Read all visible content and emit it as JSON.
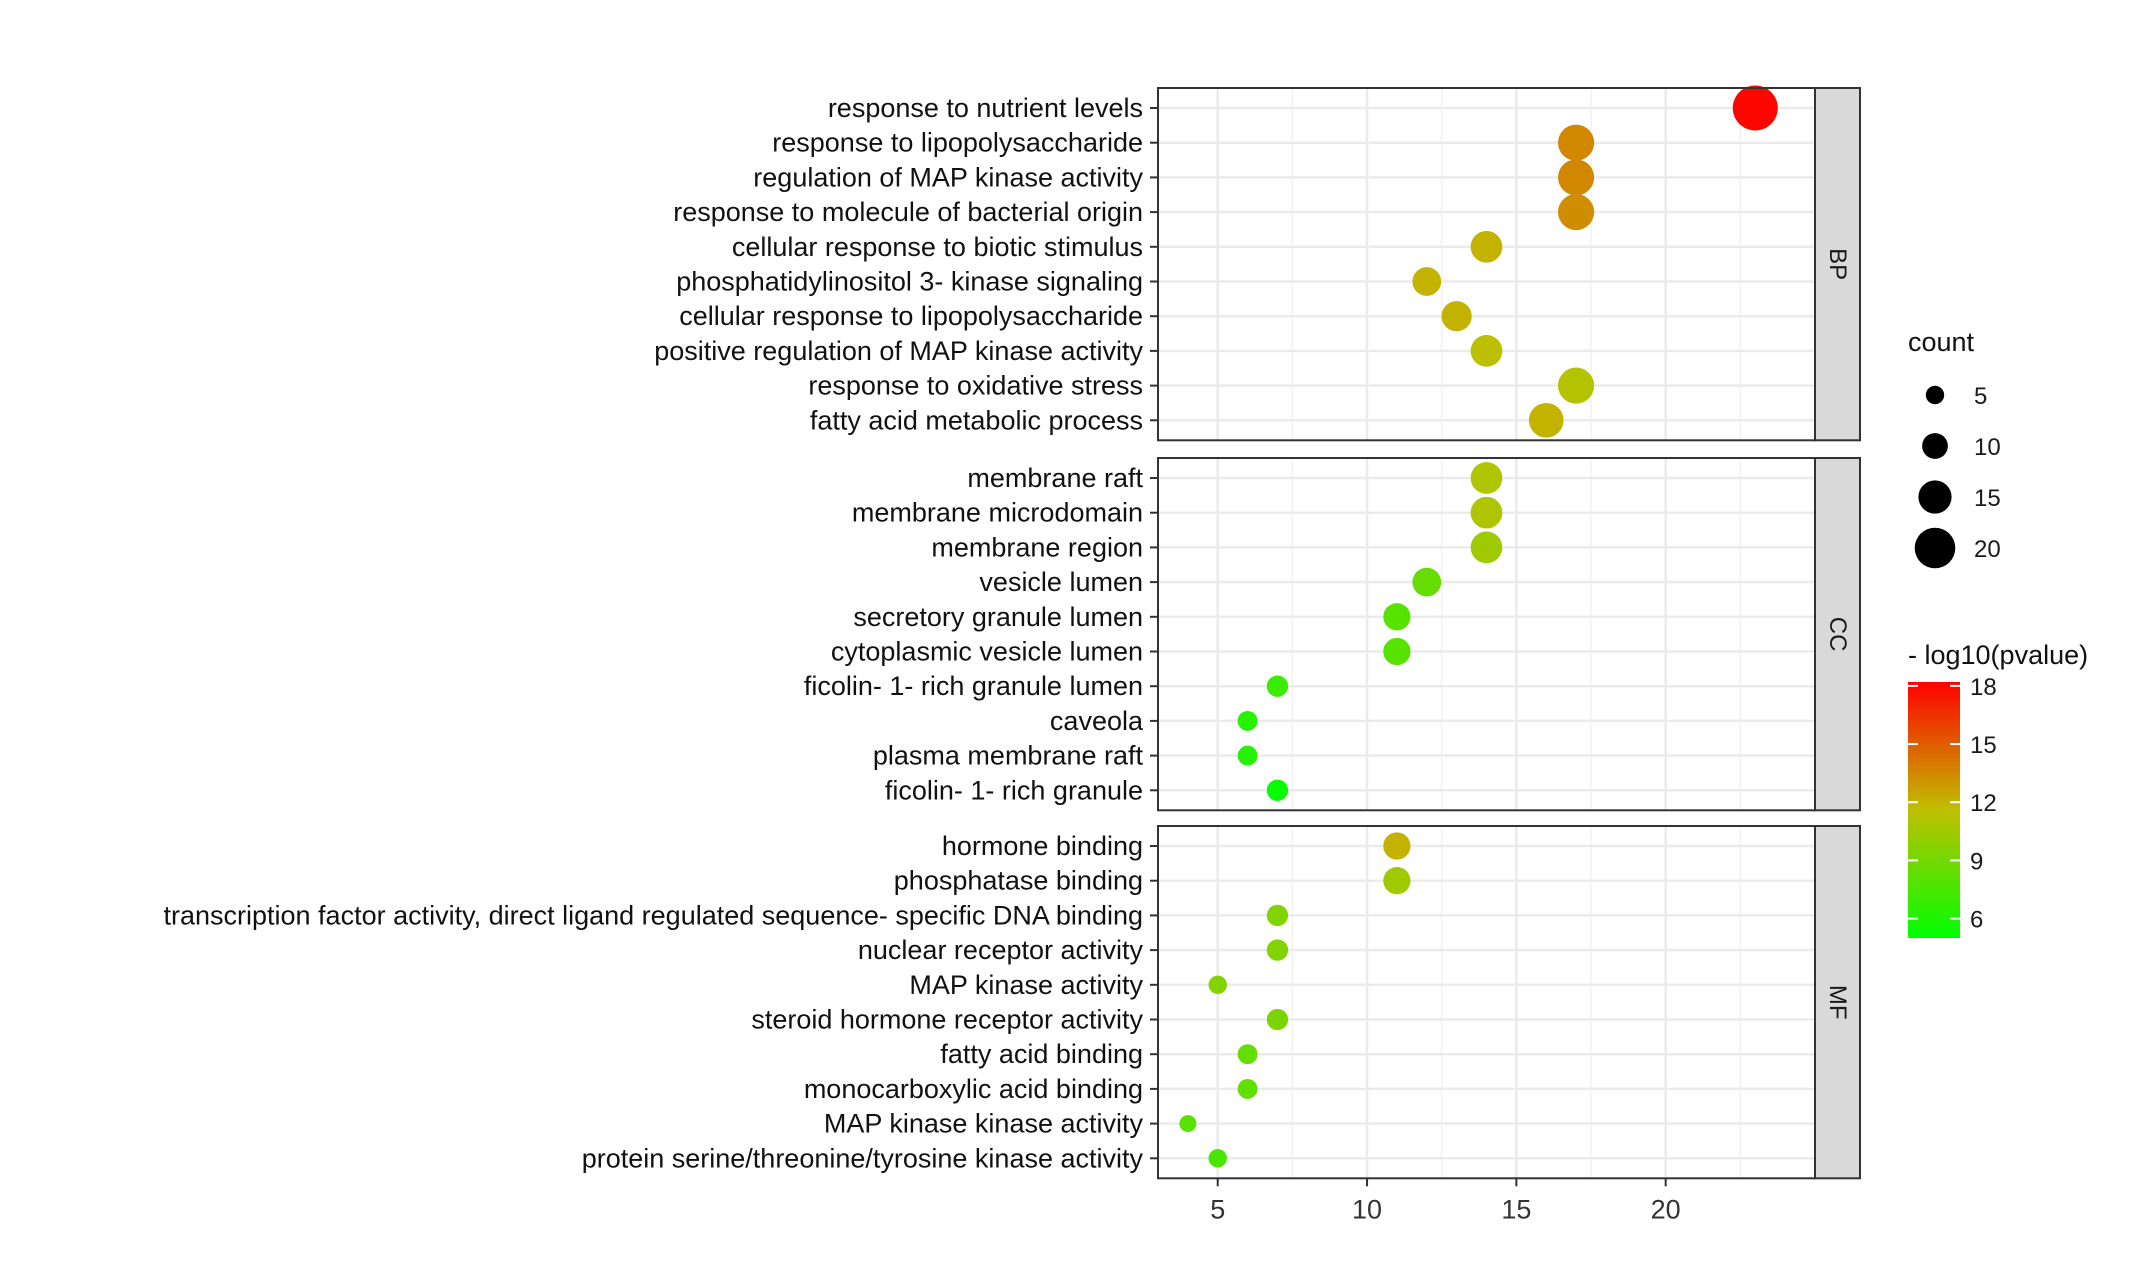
{
  "chart_data": {
    "type": "scatter",
    "title": "",
    "xlabel": "",
    "ylabel": "",
    "x_ticks": [
      5,
      10,
      15,
      20
    ],
    "x_range": [
      3,
      25
    ],
    "grid": true,
    "panels": [
      {
        "facet": "BP",
        "terms": [
          {
            "label": "response to nutrient levels",
            "count": 23,
            "neg_log10_p": 18
          },
          {
            "label": "response to lipopolysaccharide",
            "count": 17,
            "neg_log10_p": 13.5
          },
          {
            "label": "regulation of MAP kinase activity",
            "count": 17,
            "neg_log10_p": 13.5
          },
          {
            "label": "response to molecule of bacterial origin",
            "count": 17,
            "neg_log10_p": 13.3
          },
          {
            "label": "cellular response to biotic stimulus",
            "count": 14,
            "neg_log10_p": 12
          },
          {
            "label": "phosphatidylinositol 3- kinase signaling",
            "count": 12,
            "neg_log10_p": 12
          },
          {
            "label": "cellular response to lipopolysaccharide",
            "count": 13,
            "neg_log10_p": 12
          },
          {
            "label": "positive regulation of MAP kinase activity",
            "count": 14,
            "neg_log10_p": 11.5
          },
          {
            "label": "response to oxidative stress",
            "count": 17,
            "neg_log10_p": 11.2
          },
          {
            "label": "fatty acid metabolic process",
            "count": 16,
            "neg_log10_p": 12
          }
        ]
      },
      {
        "facet": "CC",
        "terms": [
          {
            "label": "membrane raft",
            "count": 14,
            "neg_log10_p": 11
          },
          {
            "label": "membrane microdomain",
            "count": 14,
            "neg_log10_p": 11
          },
          {
            "label": "membrane region",
            "count": 14,
            "neg_log10_p": 10.5
          },
          {
            "label": "vesicle lumen",
            "count": 12,
            "neg_log10_p": 8.5
          },
          {
            "label": "secretory granule lumen",
            "count": 11,
            "neg_log10_p": 8
          },
          {
            "label": "cytoplasmic vesicle lumen",
            "count": 11,
            "neg_log10_p": 8
          },
          {
            "label": "ficolin- 1- rich granule lumen",
            "count": 7,
            "neg_log10_p": 7
          },
          {
            "label": "caveola",
            "count": 6,
            "neg_log10_p": 6.3
          },
          {
            "label": "plasma membrane raft",
            "count": 6,
            "neg_log10_p": 6.3
          },
          {
            "label": "ficolin- 1- rich granule",
            "count": 7,
            "neg_log10_p": 5.3
          }
        ]
      },
      {
        "facet": "MF",
        "terms": [
          {
            "label": "hormone binding",
            "count": 11,
            "neg_log10_p": 12
          },
          {
            "label": "phosphatase binding",
            "count": 11,
            "neg_log10_p": 10.5
          },
          {
            "label": "transcription factor activity, direct ligand regulated sequence- specific DNA binding",
            "count": 7,
            "neg_log10_p": 9.5
          },
          {
            "label": "nuclear receptor activity",
            "count": 7,
            "neg_log10_p": 9.5
          },
          {
            "label": "MAP kinase activity",
            "count": 5,
            "neg_log10_p": 9.5
          },
          {
            "label": "steroid hormone receptor activity",
            "count": 7,
            "neg_log10_p": 9.3
          },
          {
            "label": "fatty acid binding",
            "count": 6,
            "neg_log10_p": 8.5
          },
          {
            "label": "monocarboxylic acid binding",
            "count": 6,
            "neg_log10_p": 8.3
          },
          {
            "label": "MAP kinase kinase activity",
            "count": 4,
            "neg_log10_p": 8
          },
          {
            "label": "protein serine/threonine/tyrosine kinase activity",
            "count": 5,
            "neg_log10_p": 7.5
          }
        ]
      }
    ],
    "size_legend": {
      "title": "count",
      "values": [
        5,
        10,
        15,
        20
      ]
    },
    "color_legend": {
      "title": "- log10(pvalue)",
      "ticks": [
        6,
        9,
        12,
        15,
        18
      ],
      "range": [
        5,
        18.2
      ],
      "low_color": "#00ff00",
      "high_color": "#ff0000"
    },
    "colors": {
      "panel_background": "#ffffff",
      "grid": "#ebebeb",
      "strip_background": "#d9d9d9",
      "border": "#333333"
    }
  }
}
